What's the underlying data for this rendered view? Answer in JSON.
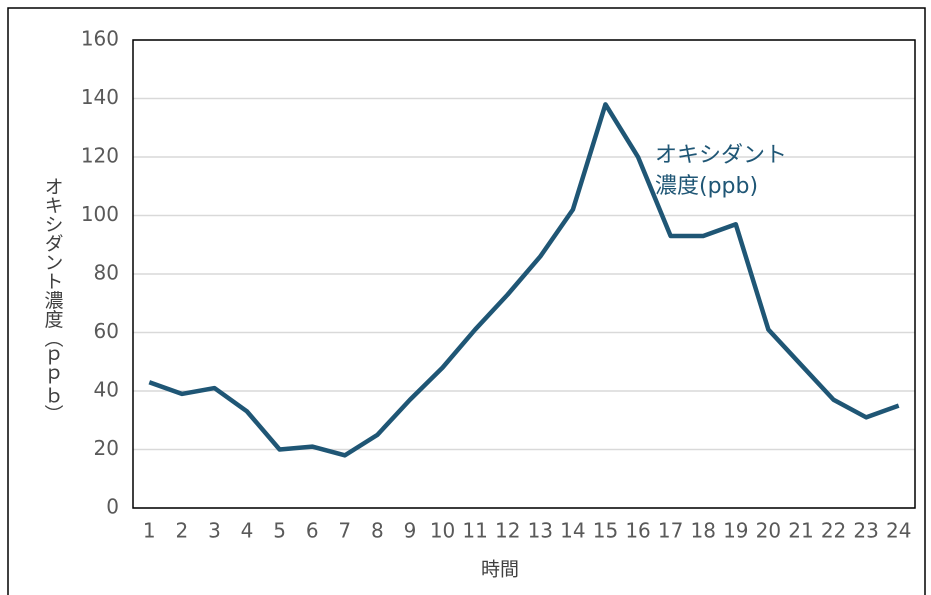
{
  "chart_data": {
    "type": "line",
    "x_label": "時間",
    "y_label": "オキシダント濃度（ｐｐｂ）",
    "annotation_lines": [
      "オキシダント",
      "濃度(ppb)"
    ],
    "categories": [
      "1",
      "2",
      "3",
      "4",
      "5",
      "6",
      "7",
      "8",
      "9",
      "10",
      "11",
      "12",
      "13",
      "14",
      "15",
      "16",
      "17",
      "18",
      "19",
      "20",
      "21",
      "22",
      "23",
      "24"
    ],
    "series": [
      {
        "name": "オキシダント濃度(ppb)",
        "color": "#1f5675",
        "values": [
          43,
          39,
          41,
          33,
          20,
          21,
          18,
          25,
          37,
          48,
          61,
          73,
          86,
          102,
          138,
          120,
          93,
          93,
          97,
          61,
          49,
          37,
          31,
          35
        ]
      }
    ],
    "ylim": [
      0,
      160
    ],
    "yticks": [
      0,
      20,
      40,
      60,
      80,
      100,
      120,
      140,
      160
    ],
    "grid": true
  }
}
